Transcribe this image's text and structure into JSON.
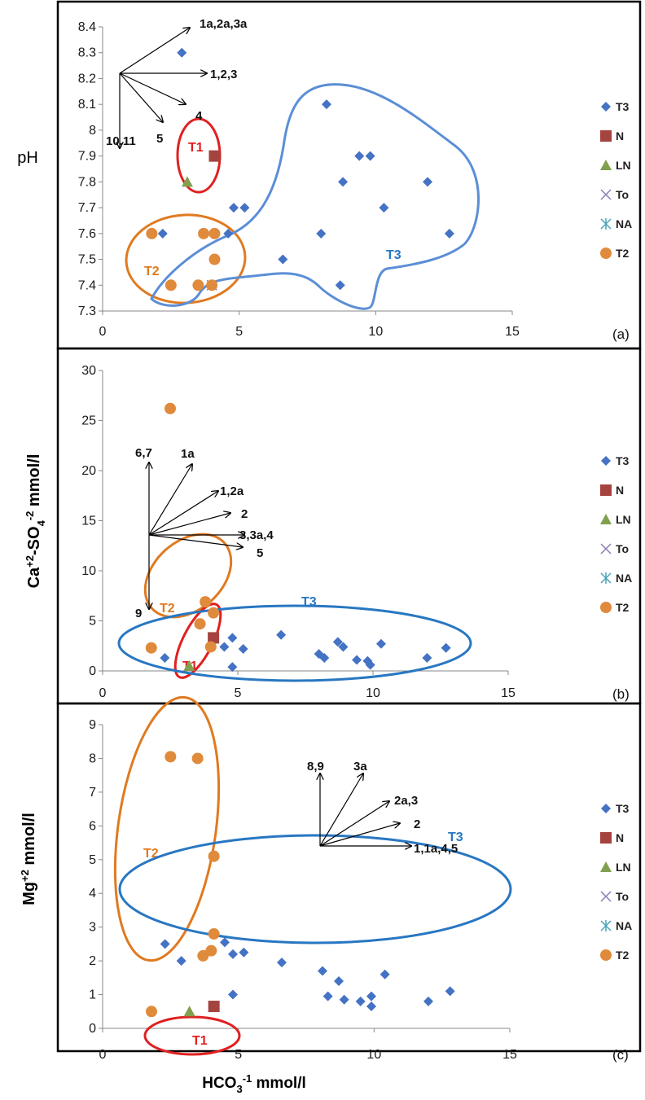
{
  "x_axis_label": {
    "main": "HCO",
    "sub": "3",
    "sup": "-1",
    "unit": "mmol/l"
  },
  "legend": [
    {
      "name": "T3",
      "marker": "diamond",
      "color": "#4472C4"
    },
    {
      "name": "N",
      "marker": "square",
      "color": "#A5433F"
    },
    {
      "name": "LN",
      "marker": "triangle",
      "color": "#80A04E"
    },
    {
      "name": "To",
      "marker": "x",
      "color": "#8C7BB4"
    },
    {
      "name": "NA",
      "marker": "star",
      "color": "#4BA3B8"
    },
    {
      "name": "T2",
      "marker": "circle",
      "color": "#E08A3C"
    }
  ],
  "group_colors": {
    "T1": "#E02020",
    "T2": "#E07A20",
    "T3a": "#5B8ED6",
    "T3": "#2877C2"
  },
  "chart_data": [
    {
      "type": "scatter",
      "panel_label": "(a)",
      "y_axis_label": {
        "parts": [
          {
            "t": "pH"
          }
        ]
      },
      "xlim": [
        0,
        15
      ],
      "ylim": [
        7.3,
        8.4
      ],
      "x_ticks": [
        0,
        5,
        10,
        15
      ],
      "y_ticks": [
        "7.3",
        "7.4",
        "7.5",
        "7.6",
        "7.7",
        "7.8",
        "7.9",
        "8",
        "8.1",
        "8.2",
        "8.3",
        "8.4"
      ],
      "legend_position": "right",
      "series": [
        {
          "name": "T3",
          "points": [
            [
              2.2,
              7.6
            ],
            [
              2.9,
              8.3
            ],
            [
              4.6,
              7.6
            ],
            [
              4.8,
              7.7
            ],
            [
              5.2,
              7.7
            ],
            [
              6.6,
              7.5
            ],
            [
              8.0,
              7.6
            ],
            [
              8.2,
              8.1
            ],
            [
              8.7,
              7.4
            ],
            [
              8.8,
              7.8
            ],
            [
              9.4,
              7.9
            ],
            [
              9.8,
              7.9
            ],
            [
              10.3,
              7.7
            ],
            [
              11.9,
              7.8
            ],
            [
              12.7,
              7.6
            ]
          ]
        },
        {
          "name": "N",
          "points": [
            [
              4.1,
              7.9
            ]
          ]
        },
        {
          "name": "LN",
          "points": [
            [
              3.1,
              7.8
            ]
          ]
        },
        {
          "name": "To",
          "points": [
            [
              4.0,
              7.4
            ]
          ]
        },
        {
          "name": "NA",
          "points": []
        },
        {
          "name": "T2",
          "points": [
            [
              1.8,
              7.6
            ],
            [
              2.5,
              7.4
            ],
            [
              3.5,
              7.4
            ],
            [
              3.7,
              7.6
            ],
            [
              4.1,
              7.6
            ],
            [
              4.1,
              7.5
            ],
            [
              4.0,
              7.4
            ]
          ]
        }
      ],
      "annotations": {
        "arrow_labels": [
          "1a,2a,3a",
          "1,2,3",
          "4",
          "5",
          "10,11"
        ],
        "groups": [
          {
            "name": "T1",
            "color": "#E02020"
          },
          {
            "name": "T2",
            "color": "#E07A20"
          },
          {
            "name": "T3",
            "color": "#2877C2"
          }
        ]
      }
    },
    {
      "type": "scatter",
      "panel_label": "(b)",
      "y_axis_label": {
        "parts": [
          {
            "t": "Ca"
          },
          {
            "sup": "+2"
          },
          {
            "t": "-SO"
          },
          {
            "sub": "4"
          },
          {
            "sup": "-2"
          },
          {
            "t": " mmol/l"
          }
        ]
      },
      "xlim": [
        0,
        15
      ],
      "ylim": [
        0,
        30
      ],
      "x_ticks": [
        0,
        5,
        10,
        15
      ],
      "y_ticks": [
        "0",
        "5",
        "10",
        "15",
        "20",
        "25",
        "30"
      ],
      "legend_position": "right",
      "series": [
        {
          "name": "T3",
          "points": [
            [
              2.3,
              1.3
            ],
            [
              4.5,
              2.4
            ],
            [
              4.8,
              0.4
            ],
            [
              4.8,
              3.3
            ],
            [
              5.2,
              2.2
            ],
            [
              6.6,
              3.6
            ],
            [
              8.0,
              1.7
            ],
            [
              8.2,
              1.3
            ],
            [
              8.7,
              2.9
            ],
            [
              8.9,
              2.4
            ],
            [
              9.4,
              1.1
            ],
            [
              9.8,
              1.0
            ],
            [
              9.9,
              0.6
            ],
            [
              10.3,
              2.7
            ],
            [
              12.0,
              1.3
            ],
            [
              12.7,
              2.3
            ]
          ]
        },
        {
          "name": "N",
          "points": [
            [
              4.1,
              3.3
            ]
          ]
        },
        {
          "name": "LN",
          "points": [
            [
              3.2,
              0.5
            ]
          ]
        },
        {
          "name": "To",
          "points": []
        },
        {
          "name": "NA",
          "points": []
        },
        {
          "name": "T2",
          "points": [
            [
              1.8,
              2.3
            ],
            [
              2.5,
              26.2
            ],
            [
              3.6,
              4.7
            ],
            [
              3.8,
              6.9
            ],
            [
              4.1,
              5.8
            ],
            [
              4.0,
              2.4
            ]
          ]
        }
      ],
      "annotations": {
        "arrow_labels": [
          "6,7",
          "1a",
          "1,2a",
          "2",
          "3,3a,4",
          "5",
          "9"
        ],
        "groups": [
          {
            "name": "T2",
            "color": "#E07A20"
          },
          {
            "name": "T1",
            "color": "#E02020"
          },
          {
            "name": "T3",
            "color": "#2877C2"
          }
        ]
      }
    },
    {
      "type": "scatter",
      "panel_label": "(c)",
      "y_axis_label": {
        "parts": [
          {
            "t": "Mg"
          },
          {
            "sup": "+2"
          },
          {
            "t": " mmol/l"
          }
        ]
      },
      "xlim": [
        0,
        15
      ],
      "ylim": [
        0,
        9
      ],
      "x_ticks": [
        0,
        5,
        10,
        15
      ],
      "y_ticks": [
        "0",
        "1",
        "2",
        "3",
        "4",
        "5",
        "6",
        "7",
        "8",
        "9"
      ],
      "legend_position": "right",
      "series": [
        {
          "name": "T3",
          "points": [
            [
              2.3,
              2.5
            ],
            [
              2.9,
              2.0
            ],
            [
              4.5,
              2.55
            ],
            [
              4.8,
              1.0
            ],
            [
              4.8,
              2.2
            ],
            [
              5.2,
              2.25
            ],
            [
              6.6,
              1.95
            ],
            [
              8.1,
              1.7
            ],
            [
              8.3,
              0.95
            ],
            [
              8.7,
              1.4
            ],
            [
              8.9,
              0.85
            ],
            [
              9.5,
              0.8
            ],
            [
              9.9,
              0.95
            ],
            [
              9.9,
              0.65
            ],
            [
              10.4,
              1.6
            ],
            [
              12.0,
              0.8
            ],
            [
              12.8,
              1.1
            ]
          ]
        },
        {
          "name": "N",
          "points": [
            [
              4.1,
              0.65
            ]
          ]
        },
        {
          "name": "LN",
          "points": [
            [
              3.2,
              0.5
            ]
          ]
        },
        {
          "name": "To",
          "points": []
        },
        {
          "name": "NA",
          "points": []
        },
        {
          "name": "T2",
          "points": [
            [
              1.8,
              0.5
            ],
            [
              2.5,
              8.05
            ],
            [
              3.5,
              8.0
            ],
            [
              3.7,
              2.15
            ],
            [
              4.1,
              5.1
            ],
            [
              4.1,
              2.8
            ],
            [
              4.0,
              2.3
            ]
          ]
        }
      ],
      "annotations": {
        "arrow_labels": [
          "8,9",
          "3a",
          "2a,3",
          "2",
          "1,1a,4,5"
        ],
        "groups": [
          {
            "name": "T2",
            "color": "#E07A20"
          },
          {
            "name": "T1",
            "color": "#E02020"
          },
          {
            "name": "T3",
            "color": "#2877C2"
          }
        ]
      }
    }
  ]
}
